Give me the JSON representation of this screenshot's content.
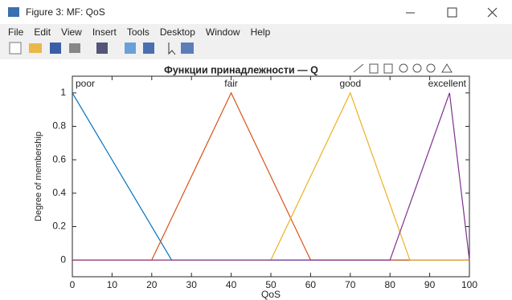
{
  "window": {
    "title": "Figure 3: MF: QoS",
    "menu": [
      "File",
      "Edit",
      "View",
      "Insert",
      "Tools",
      "Desktop",
      "Window",
      "Help"
    ]
  },
  "chart_data": {
    "type": "line",
    "title": "Функции принадлежности — Q",
    "xlabel": "QoS",
    "ylabel": "Degree of membership",
    "xlim": [
      0,
      100
    ],
    "ylim": [
      -0.1,
      1.1
    ],
    "xticks": [
      0,
      10,
      20,
      30,
      40,
      50,
      60,
      70,
      80,
      90,
      100
    ],
    "yticks": [
      0,
      0.2,
      0.4,
      0.6,
      0.8,
      1
    ],
    "series": [
      {
        "name": "poor",
        "color": "#0072BD",
        "x": [
          0,
          25,
          100
        ],
        "values": [
          1,
          0,
          0
        ]
      },
      {
        "name": "fair",
        "color": "#D95319",
        "x": [
          0,
          20,
          40,
          60,
          100
        ],
        "values": [
          0,
          0,
          1,
          0,
          0
        ]
      },
      {
        "name": "good",
        "color": "#EDB120",
        "x": [
          0,
          50,
          70,
          85,
          100
        ],
        "values": [
          0,
          0,
          1,
          0,
          0
        ]
      },
      {
        "name": "excellent",
        "color": "#7E2F8E",
        "x": [
          0,
          80,
          95,
          100
        ],
        "values": [
          0,
          0,
          1,
          0
        ]
      }
    ]
  }
}
